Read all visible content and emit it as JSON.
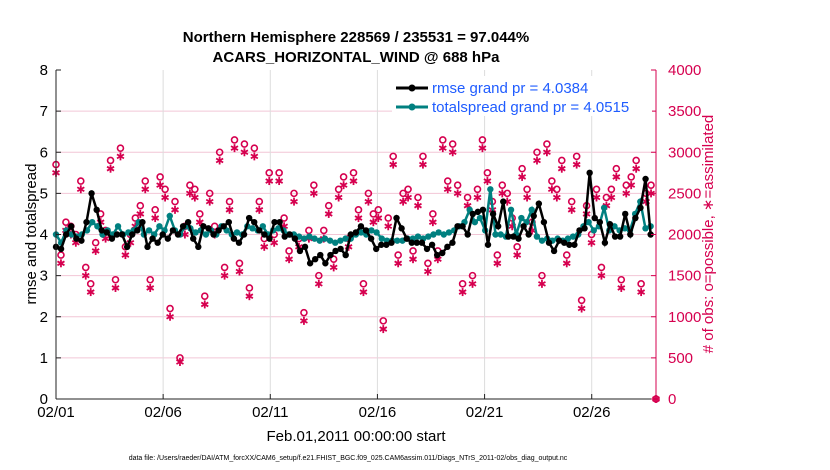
{
  "chart_data": {
    "type": "line",
    "title": [
      "Northern Hemisphere 228569 / 235531 = 97.044%",
      "ACARS_HORIZONTAL_WIND @ 688 hPa"
    ],
    "xlabel": "Feb.01,2011 00:00:00 start",
    "ylabel": "rmse and totalspread",
    "ylabel_right": "# of obs: o=possible, ∗=assimilated",
    "xlim": [
      0,
      28
    ],
    "ylim": [
      0,
      8
    ],
    "ylim_right": [
      0,
      4000
    ],
    "x_ticks": [
      {
        "v": 0,
        "label": "02/01"
      },
      {
        "v": 5,
        "label": "02/06"
      },
      {
        "v": 10,
        "label": "02/11"
      },
      {
        "v": 15,
        "label": "02/16"
      },
      {
        "v": 20,
        "label": "02/21"
      },
      {
        "v": 25,
        "label": "02/26"
      }
    ],
    "y_ticks": [
      0,
      1,
      2,
      3,
      4,
      5,
      6,
      7,
      8
    ],
    "y_ticks_right": [
      0,
      500,
      1000,
      1500,
      2000,
      2500,
      3000,
      3500,
      4000
    ],
    "grid": true,
    "legend_position": "top-right",
    "footer": "data file: /Users/raeder/DAI/ATM_forcXX/CAM6_setup/f.e21.FHIST_BGC.f09_025.CAM6assim.011/Diags_NTrS_2011-02/obs_diag_output.nc",
    "colors": {
      "rmse": "#000000",
      "spread": "#008080",
      "obs": "#d6004f",
      "legend_text": "#1f5cff"
    },
    "series": [
      {
        "name": "rmse grand pr = 4.0384",
        "axis": "left",
        "values": [
          3.7,
          3.65,
          4.0,
          4.2,
          3.9,
          3.85,
          4.3,
          5.0,
          4.6,
          4.1,
          4.05,
          3.9,
          4.0,
          4.0,
          3.7,
          4.0,
          4.1,
          4.3,
          3.7,
          3.9,
          3.8,
          4.0,
          3.9,
          4.1,
          4.0,
          4.2,
          4.3,
          3.9,
          3.7,
          4.2,
          4.15,
          4.0,
          4.1,
          4.2,
          4.3,
          3.9,
          3.8,
          4.0,
          4.4,
          4.3,
          4.1,
          4.0,
          3.9,
          4.3,
          4.3,
          3.95,
          4.0,
          3.9,
          3.6,
          3.7,
          3.3,
          3.4,
          3.5,
          3.3,
          3.5,
          3.6,
          3.65,
          3.5,
          4.0,
          4.05,
          4.2,
          4.1,
          3.9,
          3.65,
          3.75,
          3.75,
          3.8,
          4.4,
          4.15,
          3.9,
          3.8,
          3.8,
          3.8,
          3.65,
          3.75,
          3.5,
          3.55,
          3.7,
          3.8,
          4.2,
          4.2,
          4.0,
          4.5,
          4.55,
          4.6,
          3.75,
          4.5,
          4.2,
          4.8,
          3.95,
          3.95,
          3.9,
          4.2,
          4.0,
          4.45,
          4.75,
          4.3,
          3.8,
          3.6,
          3.85,
          3.8,
          3.75,
          3.75,
          4.1,
          4.15,
          5.5,
          4.4,
          4.3,
          3.8,
          4.25,
          3.95,
          3.95,
          4.5,
          4.0,
          4.4,
          4.65,
          5.35,
          4.0
        ]
      },
      {
        "name": "totalspread grand pr = 4.0515",
        "axis": "left",
        "values": [
          4.0,
          3.8,
          4.1,
          4.0,
          3.95,
          4.0,
          4.1,
          4.3,
          4.2,
          4.0,
          4.1,
          4.0,
          4.2,
          4.0,
          4.05,
          4.1,
          4.3,
          4.0,
          4.1,
          4.0,
          4.2,
          4.1,
          4.45,
          4.1,
          4.0,
          4.2,
          4.15,
          4.05,
          4.1,
          4.0,
          4.1,
          4.0,
          4.2,
          4.1,
          4.0,
          4.05,
          4.0,
          4.2,
          4.15,
          4.1,
          4.2,
          4.0,
          4.1,
          4.15,
          4.1,
          4.0,
          4.0,
          3.95,
          3.9,
          3.95,
          3.9,
          3.85,
          3.9,
          3.85,
          3.8,
          3.85,
          3.9,
          3.9,
          4.0,
          4.05,
          4.0,
          4.1,
          4.05,
          3.9,
          3.85,
          3.85,
          3.85,
          3.85,
          3.9,
          3.9,
          3.95,
          3.9,
          3.95,
          4.0,
          4.05,
          4.0,
          4.05,
          4.1,
          4.2,
          4.3,
          4.6,
          4.3,
          4.4,
          4.1,
          5.1,
          4.0,
          4.0,
          3.95,
          4.6,
          4.0,
          4.4,
          4.3,
          4.6,
          3.95,
          3.85,
          3.9,
          3.85,
          3.9,
          3.85,
          3.9,
          3.95,
          4.0,
          4.2,
          4.3,
          4.1,
          4.2,
          4.65,
          4.1,
          4.2,
          4.1,
          4.15,
          4.1,
          4.5,
          4.8,
          4.15,
          4.2
        ]
      },
      {
        "name": "possible",
        "axis": "right",
        "marker": "o",
        "values": [
          2850,
          1750,
          2150,
          2100,
          2000,
          2650,
          1600,
          1400,
          1900,
          2250,
          2050,
          2900,
          1450,
          3050,
          1850,
          2000,
          2200,
          2350,
          2650,
          1450,
          2300,
          2700,
          2550,
          1100,
          2400,
          500,
          2100,
          2600,
          2550,
          2250,
          1250,
          2500,
          2100,
          3000,
          1600,
          2400,
          3150,
          1650,
          3100,
          1350,
          3050,
          2400,
          1950,
          2750,
          2000,
          2750,
          2200,
          1800,
          2500,
          1950,
          1050,
          2050,
          2600,
          1500,
          2050,
          2350,
          1700,
          2550,
          2700,
          1950,
          2750,
          2300,
          1400,
          2500,
          2250,
          2300,
          950,
          2200,
          2950,
          1750,
          2500,
          2550,
          1800,
          2450,
          2950,
          1650,
          2250,
          1800,
          3150,
          2650,
          3100,
          2600,
          1400,
          2450,
          1500,
          2550,
          3150,
          2750,
          2400,
          1750,
          2600,
          2500,
          2200,
          1850,
          2800,
          2550,
          2150,
          3000,
          1500,
          3100,
          2650,
          2550,
          2900,
          1750,
          2400,
          2950,
          1200,
          2350,
          2000,
          2550,
          1600,
          2450,
          2550,
          2800,
          1450,
          2600,
          2700,
          2900,
          1400,
          2500,
          2600,
          0
        ]
      },
      {
        "name": "assimilated",
        "axis": "right",
        "marker": "*",
        "values": [
          2750,
          1650,
          2050,
          2000,
          1900,
          2550,
          1500,
          1300,
          1800,
          2150,
          1950,
          2800,
          1350,
          2950,
          1750,
          1900,
          2100,
          2250,
          2550,
          1350,
          2200,
          2600,
          2450,
          1000,
          2300,
          450,
          2000,
          2500,
          2450,
          2150,
          1150,
          2400,
          2000,
          2900,
          1500,
          2300,
          3050,
          1550,
          3000,
          1250,
          2950,
          2300,
          1850,
          2650,
          1900,
          2650,
          2100,
          1700,
          2400,
          1850,
          950,
          1950,
          2500,
          1400,
          1950,
          2250,
          1600,
          2450,
          2600,
          1850,
          2650,
          2200,
          1300,
          2400,
          2150,
          2200,
          850,
          2100,
          2850,
          1650,
          2400,
          2450,
          1700,
          2350,
          2850,
          1550,
          2150,
          1700,
          3050,
          2550,
          3000,
          2500,
          1300,
          2350,
          1400,
          2450,
          3050,
          2650,
          2300,
          1650,
          2500,
          2400,
          2100,
          1750,
          2700,
          2450,
          2050,
          2900,
          1400,
          3000,
          2550,
          2450,
          2800,
          1650,
          2300,
          2850,
          1100,
          2250,
          1900,
          2450,
          1500,
          2350,
          2450,
          2700,
          1350,
          2500,
          2600,
          2800,
          1300,
          2400,
          2500,
          0
        ]
      }
    ]
  }
}
